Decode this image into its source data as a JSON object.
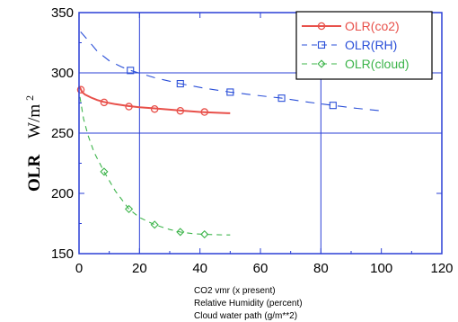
{
  "chart_data": {
    "type": "line",
    "title": "",
    "ylabel_main": "OLR",
    "ylabel_unit": "W/m",
    "ylabel_unit_sup": "2",
    "xlabel_lines": [
      "CO2 vmr (x present)",
      "Relative Humidity (percent)",
      "Cloud water path (g/m**2)"
    ],
    "xlim": [
      0,
      120
    ],
    "ylim": [
      150,
      350
    ],
    "xticks": [
      "0",
      "20",
      "40",
      "60",
      "80",
      "100",
      "120"
    ],
    "yticks": [
      "150",
      "200",
      "250",
      "300",
      "350"
    ],
    "grid": {
      "x": [
        20,
        80
      ],
      "y": [
        250,
        300
      ]
    },
    "legend_position": "top-right",
    "series": [
      {
        "name": "OLR(co2)",
        "color": "#e8504a",
        "line": "solid",
        "marker": "circle",
        "curve": [
          [
            0.3,
            288
          ],
          [
            1,
            284
          ],
          [
            2,
            282
          ],
          [
            4,
            279.5
          ],
          [
            6,
            277.5
          ],
          [
            8,
            276
          ],
          [
            12,
            274
          ],
          [
            16,
            272.5
          ],
          [
            20,
            271.5
          ],
          [
            25,
            270.5
          ],
          [
            30,
            269.5
          ],
          [
            35,
            268.5
          ],
          [
            40,
            267.5
          ],
          [
            45,
            267
          ],
          [
            50,
            266.5
          ]
        ],
        "points": [
          [
            0.6,
            286
          ],
          [
            8.3,
            275.5
          ],
          [
            16.5,
            272
          ],
          [
            25,
            270
          ],
          [
            33.5,
            268.5
          ],
          [
            41.5,
            267.5
          ]
        ]
      },
      {
        "name": "OLR(RH)",
        "color": "#2a4fd8",
        "line": "dashed",
        "marker": "square",
        "curve": [
          [
            0.5,
            334
          ],
          [
            3,
            327
          ],
          [
            6,
            318
          ],
          [
            10,
            310
          ],
          [
            14,
            305
          ],
          [
            17,
            302
          ],
          [
            25,
            296
          ],
          [
            33.5,
            291
          ],
          [
            42,
            287
          ],
          [
            50,
            284
          ],
          [
            60,
            281
          ],
          [
            67,
            279
          ],
          [
            75,
            276
          ],
          [
            84,
            273
          ],
          [
            92,
            270.5
          ],
          [
            100,
            268.5
          ]
        ],
        "points": [
          [
            17,
            302
          ],
          [
            33.5,
            291
          ],
          [
            50,
            284
          ],
          [
            67,
            279
          ],
          [
            84,
            273
          ]
        ]
      },
      {
        "name": "OLR(cloud)",
        "color": "#3cb44a",
        "line": "dashed",
        "marker": "diamond",
        "curve": [
          [
            0.3,
            280
          ],
          [
            1.5,
            262
          ],
          [
            3,
            248
          ],
          [
            5,
            234
          ],
          [
            8.3,
            218
          ],
          [
            12,
            202
          ],
          [
            16.5,
            187
          ],
          [
            20,
            180
          ],
          [
            25,
            174
          ],
          [
            30,
            170
          ],
          [
            33.5,
            168
          ],
          [
            38,
            166.5
          ],
          [
            42,
            166
          ],
          [
            48,
            165.5
          ],
          [
            50,
            165.5
          ]
        ],
        "points": [
          [
            8.3,
            218
          ],
          [
            16.5,
            187
          ],
          [
            25,
            174
          ],
          [
            33.5,
            168
          ],
          [
            41.5,
            166
          ]
        ]
      }
    ]
  }
}
